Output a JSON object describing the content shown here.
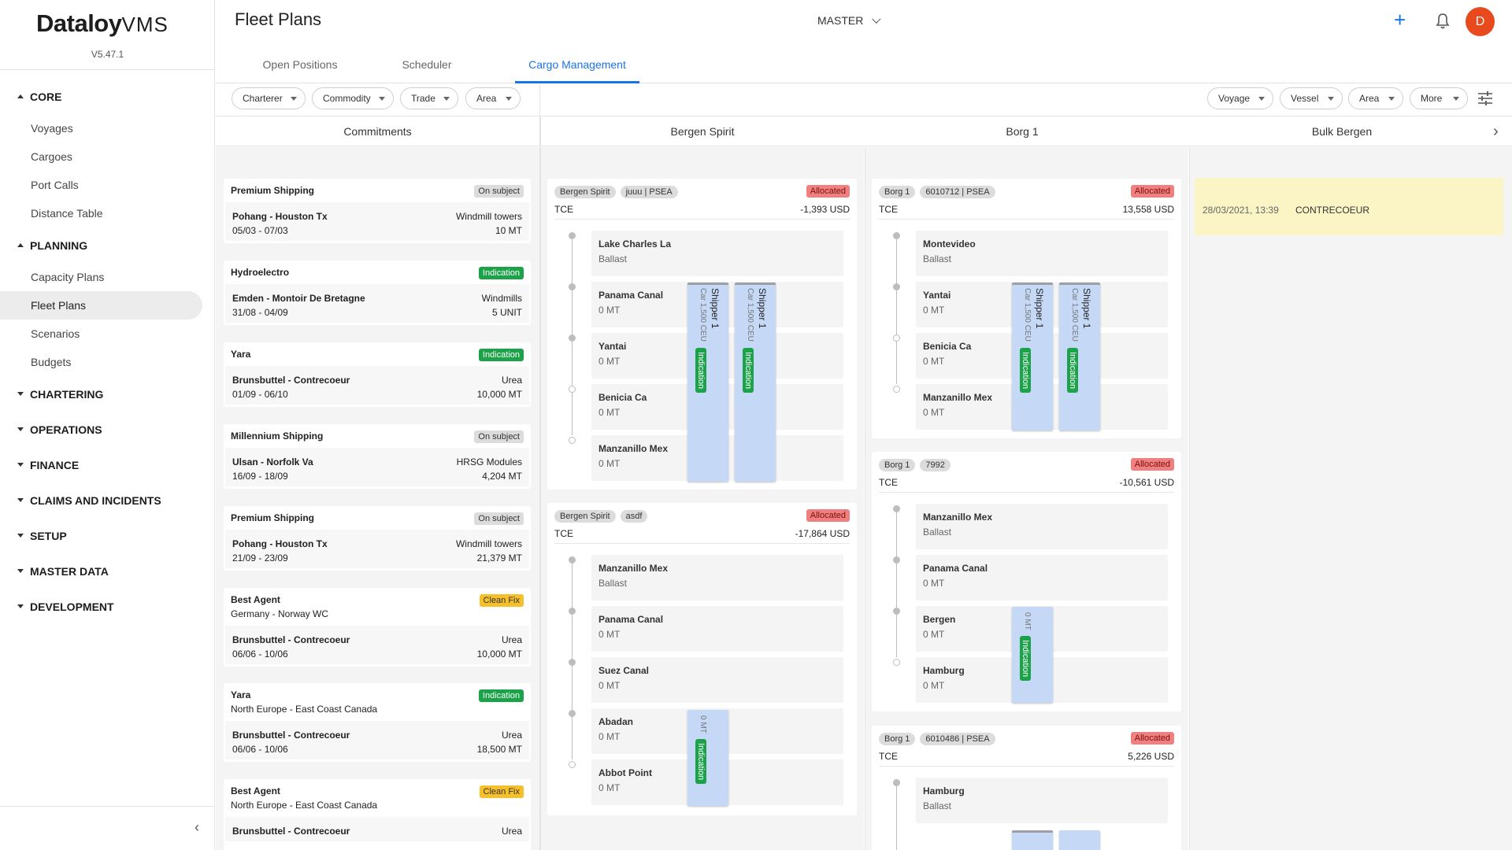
{
  "app": {
    "logo_main": "Dataloy",
    "logo_sub": "VMS",
    "version": "V5.47.1"
  },
  "sidebar": {
    "sections": [
      {
        "label": "CORE",
        "expanded": true,
        "items": [
          "Voyages",
          "Cargoes",
          "Port Calls",
          "Distance Table"
        ]
      },
      {
        "label": "PLANNING",
        "expanded": true,
        "items": [
          "Capacity Plans",
          "Fleet Plans",
          "Scenarios",
          "Budgets"
        ]
      },
      {
        "label": "CHARTERING",
        "expanded": false,
        "items": []
      },
      {
        "label": "OPERATIONS",
        "expanded": false,
        "items": []
      },
      {
        "label": "FINANCE",
        "expanded": false,
        "items": []
      },
      {
        "label": "CLAIMS AND INCIDENTS",
        "expanded": false,
        "items": []
      },
      {
        "label": "SETUP",
        "expanded": false,
        "items": []
      },
      {
        "label": "MASTER DATA",
        "expanded": false,
        "items": []
      },
      {
        "label": "DEVELOPMENT",
        "expanded": false,
        "items": []
      }
    ],
    "active_item": "Fleet Plans"
  },
  "header": {
    "title": "Fleet Plans",
    "scenario": "MASTER",
    "avatar_initial": "D"
  },
  "tabs": [
    {
      "label": "Open Positions",
      "active": false
    },
    {
      "label": "Scheduler",
      "active": false
    },
    {
      "label": "Cargo Management",
      "active": true
    }
  ],
  "filters_left": [
    "Charterer",
    "Commodity",
    "Trade",
    "Area"
  ],
  "filters_right": [
    "Voyage",
    "Vessel",
    "Area",
    "More"
  ],
  "columns": [
    "Commitments",
    "Bergen Spirit",
    "Borg 1",
    "Bulk Bergen"
  ],
  "commitments": [
    {
      "name": "Premium Shipping",
      "status": "On subject",
      "status_type": "onsub",
      "subtitle": "",
      "route": "Pohang - Houston Tx",
      "commodity": "Windmill towers",
      "dates": "05/03 - 07/03",
      "qty": "10 MT"
    },
    {
      "name": "Hydroelectro",
      "status": "Indication",
      "status_type": "ind",
      "subtitle": "",
      "route": "Emden - Montoir De Bretagne",
      "commodity": "Windmills",
      "dates": "31/08 - 04/09",
      "qty": "5 UNIT"
    },
    {
      "name": "Yara",
      "status": "Indication",
      "status_type": "ind",
      "subtitle": "",
      "route": "Brunsbuttel - Contrecoeur",
      "commodity": "Urea",
      "dates": "01/09 - 06/10",
      "qty": "10,000 MT"
    },
    {
      "name": "Millennium Shipping",
      "status": "On subject",
      "status_type": "onsub",
      "subtitle": "",
      "route": "Ulsan - Norfolk Va",
      "commodity": "HRSG Modules",
      "dates": "16/09 - 18/09",
      "qty": "4,204 MT"
    },
    {
      "name": "Premium Shipping",
      "status": "On subject",
      "status_type": "onsub",
      "subtitle": "",
      "route": "Pohang - Houston Tx",
      "commodity": "Windmill towers",
      "dates": "21/09 - 23/09",
      "qty": "21,379 MT"
    },
    {
      "name": "Best Agent",
      "status": "Clean Fix",
      "status_type": "clean",
      "subtitle": "Germany - Norway WC",
      "route": "Brunsbuttel - Contrecoeur",
      "commodity": "Urea",
      "dates": "06/06 - 10/06",
      "qty": "10,000 MT"
    },
    {
      "name": "Yara",
      "status": "Indication",
      "status_type": "ind",
      "subtitle": "North Europe - East Coast Canada",
      "route": "Brunsbuttel - Contrecoeur",
      "commodity": "Urea",
      "dates": "06/06 - 10/06",
      "qty": "18,500 MT"
    },
    {
      "name": "Best Agent",
      "status": "Clean Fix",
      "status_type": "clean",
      "subtitle": "North Europe - East Coast Canada",
      "route": "Brunsbuttel - Contrecoeur",
      "commodity": "Urea",
      "dates": "",
      "qty": ""
    }
  ],
  "voyages": {
    "bergen_spirit": [
      {
        "vessel": "Bergen Spirit",
        "voyage": "juuu | PSEA",
        "status": "Allocated",
        "tce_label": "TCE",
        "tce": "-1,393 USD",
        "ports": [
          {
            "name": "Lake Charles La",
            "qty": "Ballast"
          },
          {
            "name": "Panama Canal",
            "qty": "0 MT"
          },
          {
            "name": "Yantai",
            "qty": "0 MT"
          },
          {
            "name": "Benicia Ca",
            "qty": "0 MT"
          },
          {
            "name": "Manzanillo Mex",
            "qty": "0 MT"
          }
        ],
        "cargoes": [
          {
            "shipper": "Shipper 1",
            "qty": "Car 1,500 CEU",
            "status": "Indication"
          },
          {
            "shipper": "Shipper 1",
            "qty": "Car 1,500 CEU",
            "status": "Indication"
          }
        ]
      },
      {
        "vessel": "Bergen Spirit",
        "voyage": "asdf",
        "status": "Allocated",
        "tce_label": "TCE",
        "tce": "-17,864 USD",
        "ports": [
          {
            "name": "Manzanillo Mex",
            "qty": "Ballast"
          },
          {
            "name": "Panama Canal",
            "qty": "0 MT"
          },
          {
            "name": "Suez Canal",
            "qty": "0 MT"
          },
          {
            "name": "Abadan",
            "qty": "0 MT"
          },
          {
            "name": "Abbot Point",
            "qty": "0 MT"
          }
        ],
        "cargoes": [
          {
            "shipper": "",
            "qty": "0 MT",
            "status": "Indication"
          }
        ]
      }
    ],
    "borg1": [
      {
        "vessel": "Borg 1",
        "voyage": "6010712 | PSEA",
        "status": "Allocated",
        "tce_label": "TCE",
        "tce": "13,558 USD",
        "ports": [
          {
            "name": "Montevideo",
            "qty": "Ballast"
          },
          {
            "name": "Yantai",
            "qty": "0 MT"
          },
          {
            "name": "Benicia Ca",
            "qty": "0 MT"
          },
          {
            "name": "Manzanillo Mex",
            "qty": "0 MT"
          }
        ],
        "cargoes": [
          {
            "shipper": "Shipper 1",
            "qty": "Car 1,500 CEU",
            "status": "Indication"
          },
          {
            "shipper": "Shipper 1",
            "qty": "Car 1,500 CEU",
            "status": "Indication"
          }
        ]
      },
      {
        "vessel": "Borg 1",
        "voyage": "7992",
        "status": "Allocated",
        "tce_label": "TCE",
        "tce": "-10,561 USD",
        "ports": [
          {
            "name": "Manzanillo Mex",
            "qty": "Ballast"
          },
          {
            "name": "Panama Canal",
            "qty": "0 MT"
          },
          {
            "name": "Bergen",
            "qty": "0 MT"
          },
          {
            "name": "Hamburg",
            "qty": "0 MT"
          }
        ],
        "cargoes": [
          {
            "shipper": "",
            "qty": "0 MT",
            "status": "Indication"
          }
        ]
      },
      {
        "vessel": "Borg 1",
        "voyage": "6010486 | PSEA",
        "status": "Allocated",
        "tce_label": "TCE",
        "tce": "5,226 USD",
        "ports": [
          {
            "name": "Hamburg",
            "qty": "Ballast"
          }
        ],
        "cargoes": []
      }
    ]
  },
  "bulk_bergen": {
    "timestamp": "28/03/2021, 13:39",
    "port": "CONTRECOEUR"
  }
}
